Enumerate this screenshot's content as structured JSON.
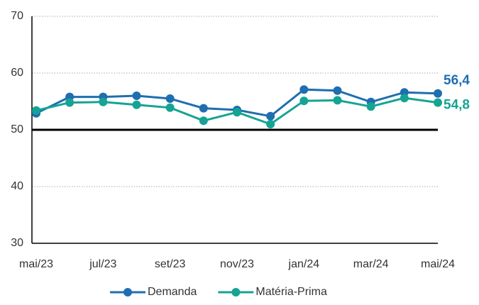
{
  "chart_data": {
    "type": "line",
    "categories": [
      "mai/23",
      null,
      "jul/23",
      null,
      "set/23",
      null,
      "nov/23",
      null,
      "jan/24",
      null,
      "mar/24",
      null,
      "mai/24"
    ],
    "series": [
      {
        "name": "Demanda",
        "color": "#1f6eb0",
        "values": [
          52.9,
          55.8,
          55.8,
          56.0,
          55.5,
          53.8,
          53.5,
          52.4,
          57.1,
          56.9,
          54.9,
          56.6,
          56.4
        ],
        "value_labels": [
          null,
          null,
          null,
          null,
          null,
          null,
          null,
          null,
          null,
          null,
          null,
          null,
          "56,4"
        ]
      },
      {
        "name": "Matéria-Prima",
        "color": "#15a493",
        "values": [
          53.4,
          54.8,
          54.9,
          54.4,
          53.9,
          51.6,
          53.1,
          51.0,
          55.1,
          55.2,
          54.1,
          55.6,
          54.8
        ],
        "value_labels": [
          null,
          null,
          null,
          null,
          null,
          null,
          null,
          null,
          null,
          null,
          null,
          null,
          "54,8"
        ]
      }
    ],
    "ylim": [
      30,
      70
    ],
    "yticks": [
      30,
      40,
      50,
      60,
      70
    ],
    "grid": true,
    "reference_line": 50,
    "legend": "bottom"
  }
}
